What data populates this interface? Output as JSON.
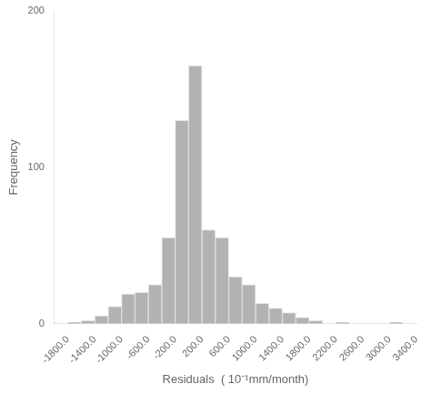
{
  "chart_data": {
    "type": "histogram",
    "bins": [
      -2000,
      -1800,
      -1600,
      -1400,
      -1200,
      -1000,
      -800,
      -600,
      -400,
      -200,
      0,
      200,
      400,
      600,
      800,
      1000,
      1200,
      1400,
      1600,
      1800,
      2000,
      2200,
      2400,
      2600,
      2800,
      3000,
      3200,
      3400
    ],
    "values": [
      0,
      1,
      2,
      5,
      11,
      19,
      20,
      25,
      55,
      130,
      165,
      60,
      55,
      30,
      25,
      13,
      10,
      7,
      4,
      2,
      0,
      1,
      0,
      0,
      0,
      1,
      0
    ],
    "color": "#b2b2b2",
    "xlabel": "Residuals  ( 10⁻¹mm/month)",
    "ylabel": "Frequency",
    "xlim": [
      -2000,
      3400
    ],
    "xticks": [
      {
        "value": -1800,
        "label": "-1800.0"
      },
      {
        "value": -1400,
        "label": "-1400.0"
      },
      {
        "value": -1000,
        "label": "-1000.0"
      },
      {
        "value": -600,
        "label": "-600.0"
      },
      {
        "value": -200,
        "label": "-200.0"
      },
      {
        "value": 200,
        "label": "200.0"
      },
      {
        "value": 600,
        "label": "600.0"
      },
      {
        "value": 1000,
        "label": "1000.0"
      },
      {
        "value": 1400,
        "label": "1400.0"
      },
      {
        "value": 1800,
        "label": "1800.0"
      },
      {
        "value": 2200,
        "label": "2200.0"
      },
      {
        "value": 2600,
        "label": "2600.0"
      },
      {
        "value": 3000,
        "label": "3000.0"
      },
      {
        "value": 3400,
        "label": "3400.0"
      }
    ],
    "ylim": [
      0,
      200
    ],
    "yticks": [
      0,
      100,
      200
    ],
    "grid": false
  }
}
